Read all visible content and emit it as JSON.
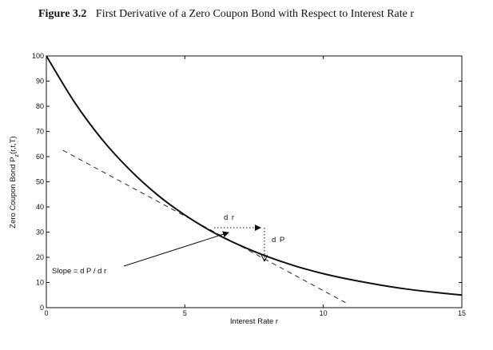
{
  "figure": {
    "number": "Figure 3.2",
    "title": "First Derivative of a Zero Coupon Bond with Respect to Interest Rate r"
  },
  "chart_data": {
    "type": "line",
    "xlabel": "Interest Rate r",
    "ylabel": "Zero Coupon Bond P_z(r,t,T)",
    "xlim": [
      0,
      15
    ],
    "ylim": [
      0,
      100
    ],
    "xticks": [
      0,
      5,
      10,
      15
    ],
    "yticks": [
      0,
      10,
      20,
      30,
      40,
      50,
      60,
      70,
      80,
      90,
      100
    ],
    "grid": false,
    "series": [
      {
        "style": "solid",
        "x": [
          0,
          1,
          2,
          3,
          4,
          5,
          6,
          7,
          8,
          9,
          10,
          11,
          12,
          13,
          14,
          15
        ],
        "y": [
          100,
          81.9,
          67.0,
          54.9,
          44.9,
          36.8,
          30.1,
          24.7,
          20.2,
          16.5,
          13.5,
          11.1,
          9.1,
          7.4,
          6.1,
          5.0
        ]
      },
      {
        "style": "dashed",
        "x": [
          0.6,
          10.8
        ],
        "y": [
          62.5,
          2.0
        ]
      }
    ],
    "annotations": {
      "dr": "d r",
      "dp": "d P",
      "slope": "Slope = d P / d r"
    }
  }
}
